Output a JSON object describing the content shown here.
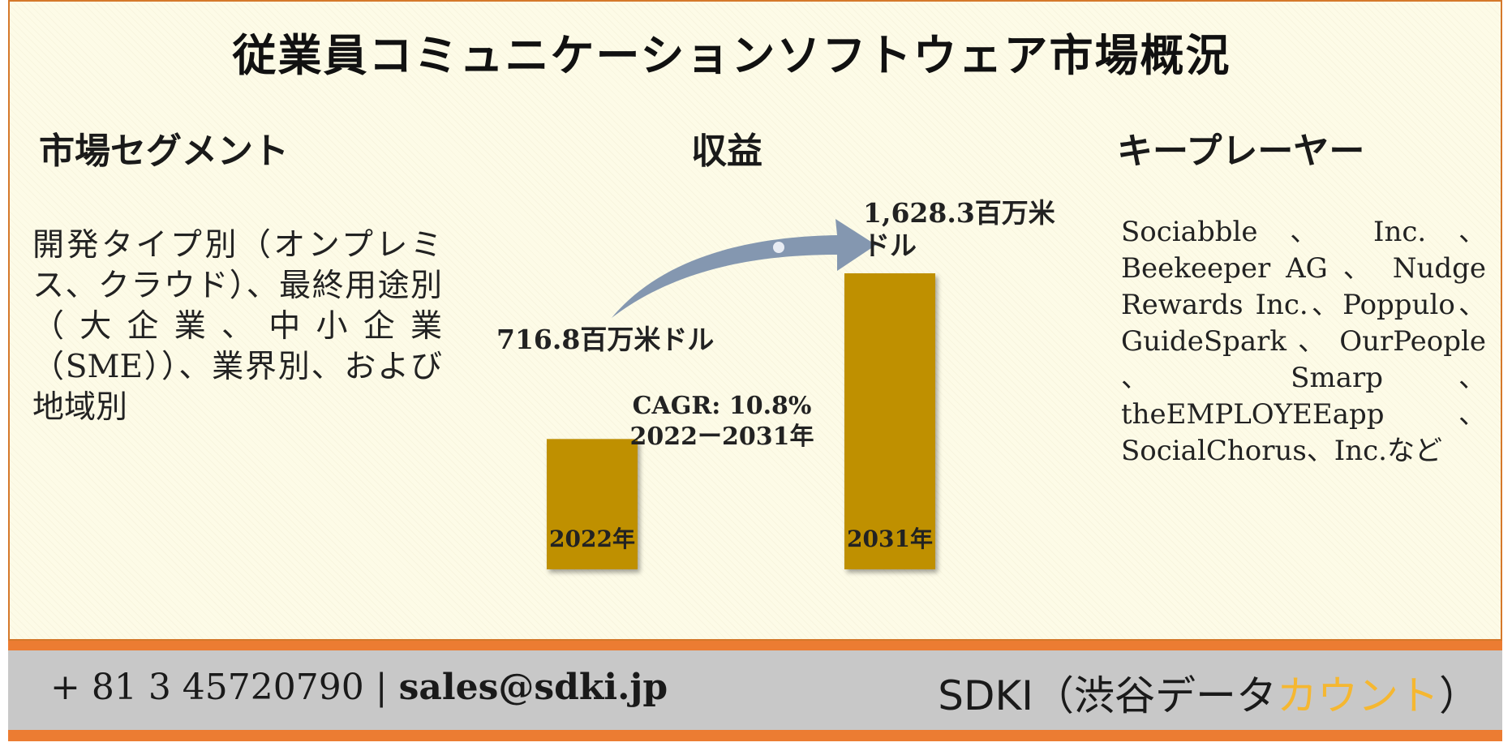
{
  "title": "従業員コミュニケーションソフトウェア市場概況",
  "segment": {
    "heading": "市場セグメント",
    "text": "開発タイプ別（オンプレミス、クラウド）、最終用途別（大企業、中小企業（SME））、業界別、および地域別"
  },
  "revenue": {
    "heading": "収益",
    "cagr_line1": "CAGR: 10.8%",
    "cagr_line2": "2022ー2031年"
  },
  "key_players": {
    "heading": "キープレーヤー",
    "text": "Sociabble 、 Inc. 、 Beekeeper AG 、 Nudge Rewards Inc.、Poppulo、GuideSpark 、 OurPeople 、 Smarp 、 theEMPLOYEEapp 、 SocialChorus、Inc.など"
  },
  "chart_data": {
    "type": "bar",
    "categories": [
      "2022年",
      "2031年"
    ],
    "values": [
      716.8,
      1628.3
    ],
    "value_labels": [
      "716.8百万米ドル",
      "1,628.3百万米ドル"
    ],
    "unit": "百万米ドル",
    "cagr": "10.8%",
    "bar_color": "#bf9000",
    "arrow_color": "#8497b0"
  },
  "footer": {
    "phone": "+ 81 3 45720790",
    "separator": "|",
    "email": "sales@sdki.jp",
    "brand_prefix": "SDKI（渋谷データ",
    "brand_accent": "カウント",
    "brand_suffix": "）",
    "accent_color": "#f5b731",
    "band_color": "#c8c8c8",
    "stripe_color": "#ec7c32"
  }
}
